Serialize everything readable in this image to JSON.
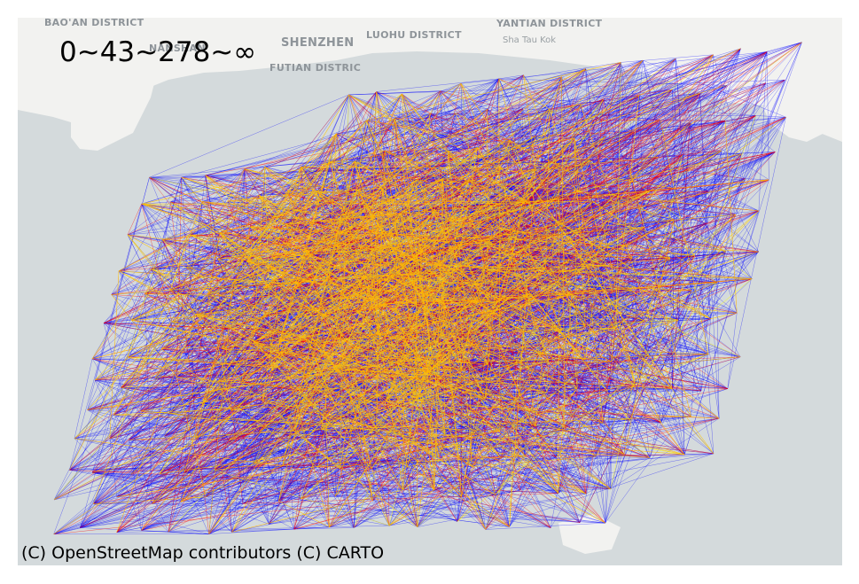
{
  "map": {
    "basemap": "CARTO light",
    "background_color": "#d4dadc",
    "land_color": "#f2f2f0",
    "place_labels": [
      "BAO'AN DISTRICT",
      "SHENZHEN",
      "LUOHU DISTRICT",
      "YANTIAN DISTRICT",
      "Sha Tau Kok",
      "FUTIAN DISTRIC",
      "NANSHAN"
    ],
    "legend_bins": "0~43~278~∞",
    "attribution": "(C) OpenStreetMap contributors (C) CARTO"
  },
  "flows": {
    "bins": [
      {
        "range": "0~43",
        "color": "#0000ff"
      },
      {
        "range": "43~278",
        "color": "#ff0000"
      },
      {
        "range": "278~∞",
        "color": "#ffff00"
      }
    ]
  }
}
